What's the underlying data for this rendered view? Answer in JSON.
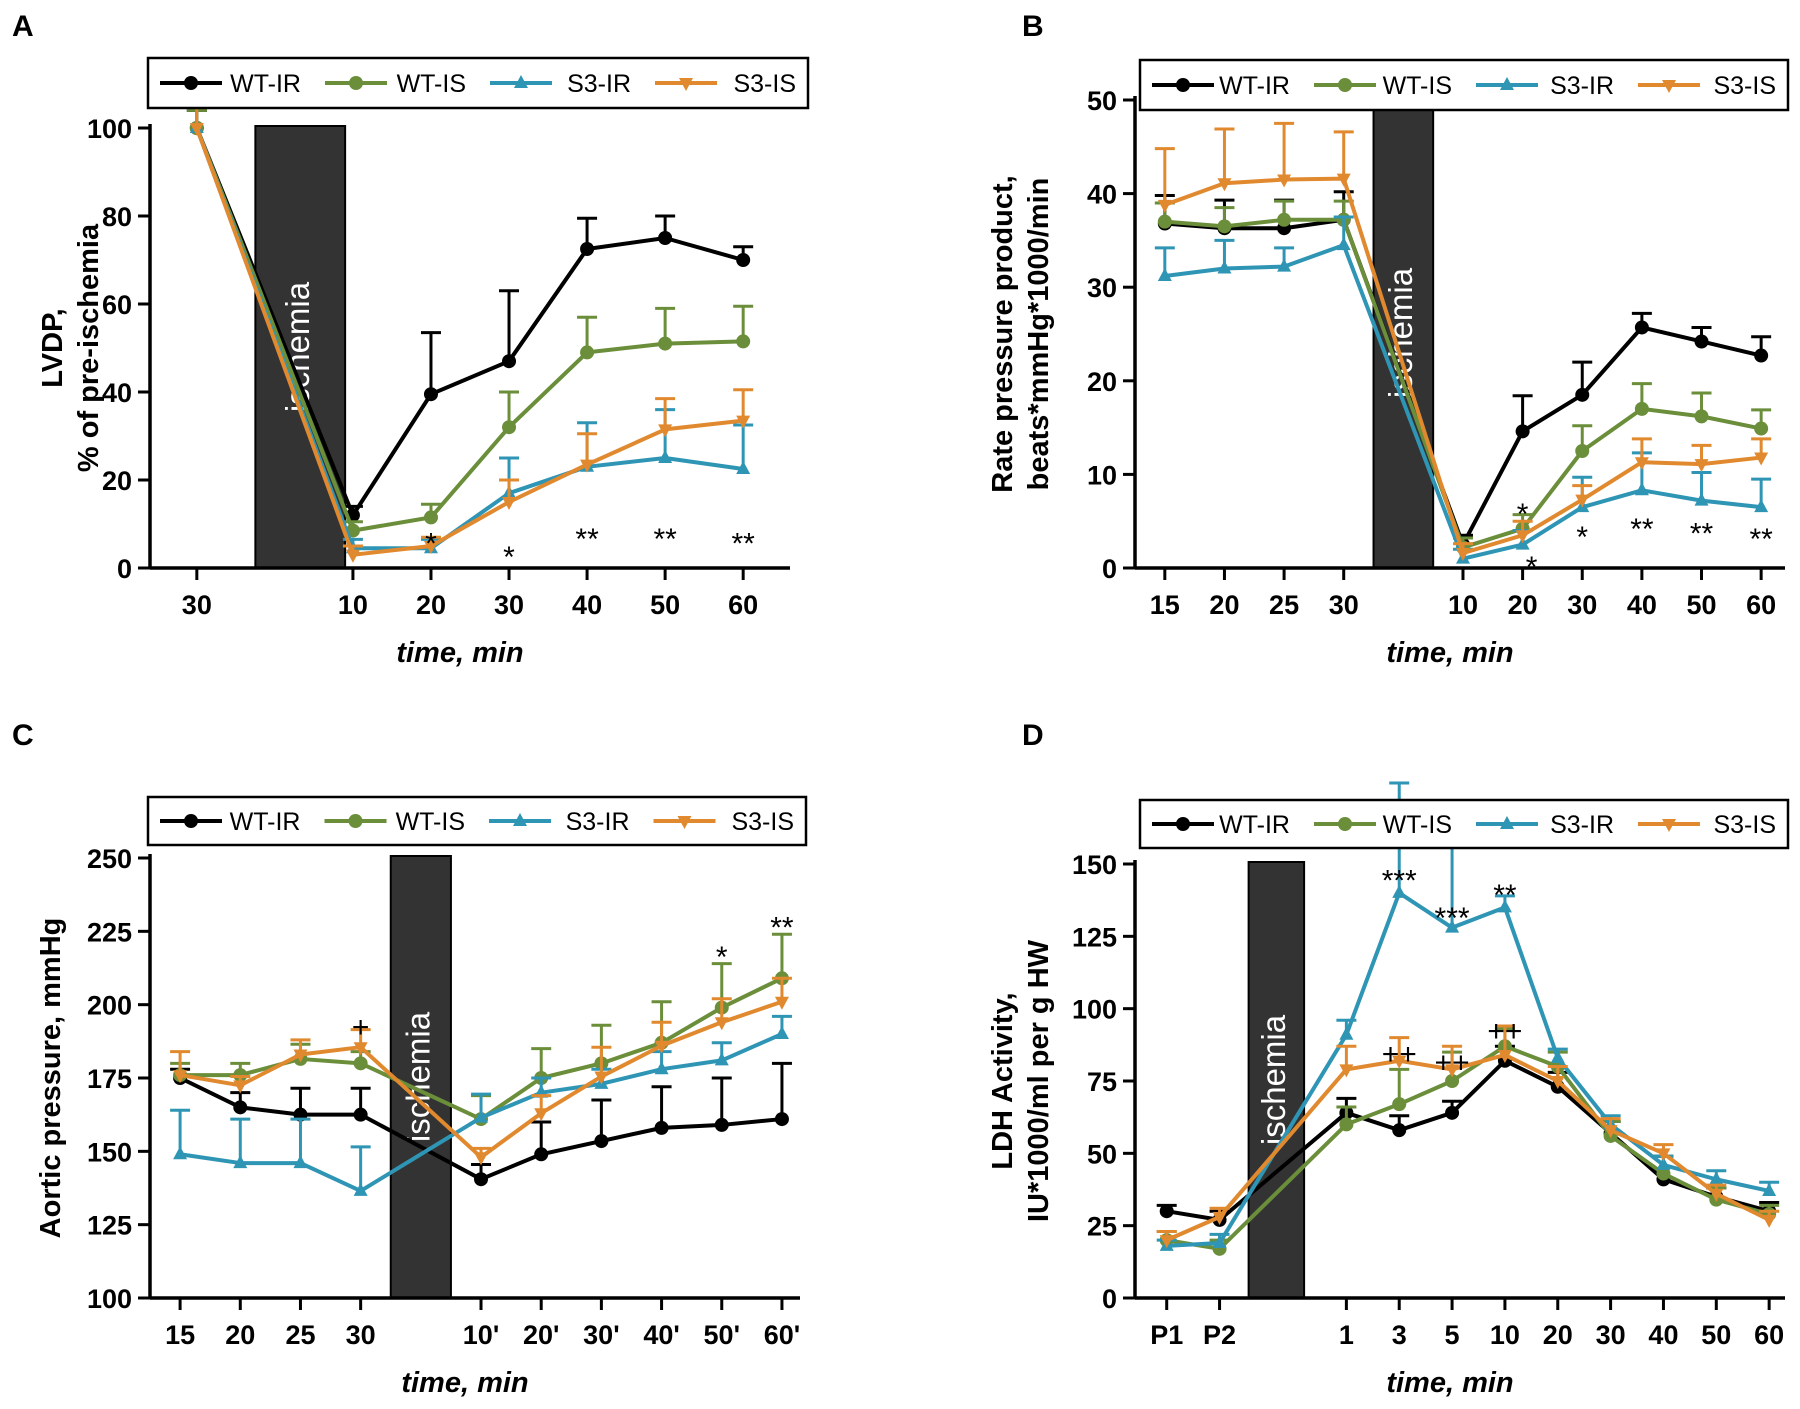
{
  "chart_data": [
    {
      "id": "A",
      "type": "line",
      "panel_label": "A",
      "xlabel": "time, min",
      "ylabel_lines": [
        "LVDP,",
        "% of pre-ischemia"
      ],
      "ylim": [
        0,
        100
      ],
      "yticks": [
        0,
        20,
        40,
        60,
        80,
        100
      ],
      "grid": false,
      "ischemia": {
        "label": "ischemia",
        "from": 0.75,
        "to": 1.9,
        "ymax": 100
      },
      "categories": [
        "30",
        "10",
        "20",
        "30",
        "40",
        "50",
        "60"
      ],
      "x": [
        0,
        2,
        3,
        4,
        5,
        6,
        7
      ],
      "series": [
        {
          "name": "WT-IR",
          "color": "#000000",
          "marker": "circle",
          "values": [
            100,
            12,
            39.5,
            47,
            72.5,
            75,
            70
          ],
          "errors": [
            4,
            2,
            14,
            16,
            7,
            5,
            3
          ]
        },
        {
          "name": "WT-IS",
          "color": "#6b8e3a",
          "marker": "circle",
          "values": [
            100,
            8.5,
            11.5,
            32,
            49,
            51,
            51.5
          ],
          "errors": [
            4,
            2,
            3,
            8,
            8,
            8,
            8
          ]
        },
        {
          "name": "S3-IR",
          "color": "#2f95b5",
          "marker": "triangle-up",
          "values": [
            100,
            4.5,
            4.5,
            17,
            23,
            25,
            22.5
          ],
          "errors": [
            6,
            2,
            2,
            8,
            10,
            11,
            10
          ]
        },
        {
          "name": "S3-IS",
          "color": "#e0892e",
          "marker": "triangle-down",
          "values": [
            100,
            3,
            5,
            15,
            23.5,
            31.5,
            33.5
          ],
          "errors": [
            12,
            2,
            2,
            5,
            7,
            7,
            7
          ]
        }
      ],
      "annotations": [
        {
          "text": "*",
          "x": 3,
          "y": 6
        },
        {
          "text": "*",
          "x": 4,
          "y": 3
        },
        {
          "text": "**",
          "x": 5,
          "y": 7
        },
        {
          "text": "**",
          "x": 6,
          "y": 7
        },
        {
          "text": "**",
          "x": 7,
          "y": 6
        }
      ]
    },
    {
      "id": "B",
      "type": "line",
      "panel_label": "B",
      "xlabel": "time, min",
      "ylabel_lines": [
        "Rate pressure product,",
        "beats*mmHg*1000/min"
      ],
      "ylim": [
        0,
        50
      ],
      "yticks": [
        0,
        10,
        20,
        30,
        40,
        50
      ],
      "grid": false,
      "ischemia": {
        "label": "ischemia",
        "from": 3.5,
        "to": 4.5,
        "ymax": 50
      },
      "categories": [
        "15",
        "20",
        "25",
        "30",
        "10",
        "20",
        "30",
        "40",
        "50",
        "60"
      ],
      "x": [
        0,
        1,
        2,
        3,
        5,
        6,
        7,
        8,
        9,
        10
      ],
      "series": [
        {
          "name": "WT-IR",
          "color": "#000000",
          "marker": "circle",
          "values": [
            36.8,
            36.3,
            36.3,
            37.2,
            2.5,
            14.6,
            18.5,
            25.7,
            24.2,
            22.7
          ],
          "errors": [
            3,
            3,
            3,
            3,
            1,
            3.8,
            3.5,
            1.5,
            1.5,
            2
          ]
        },
        {
          "name": "WT-IS",
          "color": "#6b8e3a",
          "marker": "circle",
          "values": [
            37,
            36.5,
            37.2,
            37.2,
            2.2,
            4.2,
            12.5,
            17,
            16.2,
            14.9
          ],
          "errors": [
            2,
            2,
            2,
            2,
            1,
            1.5,
            2.7,
            2.7,
            2.5,
            2
          ]
        },
        {
          "name": "S3-IR",
          "color": "#2f95b5",
          "marker": "triangle-up",
          "values": [
            31.2,
            32,
            32.2,
            34.5,
            1,
            2.5,
            6.5,
            8.3,
            7.2,
            6.5
          ],
          "errors": [
            3,
            3,
            2,
            3,
            1,
            1.5,
            3.2,
            4,
            3,
            3
          ]
        },
        {
          "name": "S3-IS",
          "color": "#e0892e",
          "marker": "triangle-down",
          "values": [
            38.8,
            41.1,
            41.5,
            41.6,
            1.6,
            3.5,
            7.3,
            11.3,
            11.1,
            11.8
          ],
          "errors": [
            6,
            5.8,
            6,
            5,
            1,
            1.5,
            1.5,
            2.5,
            2,
            2
          ]
        }
      ],
      "annotations": [
        {
          "text": "*",
          "x": 6,
          "y": 6
        },
        {
          "text": "*",
          "x": 6.15,
          "y": 0.3
        },
        {
          "text": "*",
          "x": 7,
          "y": 3.5
        },
        {
          "text": "**",
          "x": 8,
          "y": 4.4
        },
        {
          "text": "**",
          "x": 9,
          "y": 3.9
        },
        {
          "text": "**",
          "x": 10,
          "y": 3.3
        }
      ]
    },
    {
      "id": "C",
      "type": "line",
      "panel_label": "C",
      "xlabel": "time, min",
      "ylabel_lines": [
        "Aortic pressure, mmHg"
      ],
      "ylim": [
        100,
        250
      ],
      "yticks": [
        100,
        125,
        150,
        175,
        200,
        225,
        250
      ],
      "grid": false,
      "ischemia": {
        "label": "ischemia",
        "from": 3.5,
        "to": 4.5,
        "ymax": 250
      },
      "categories": [
        "15",
        "20",
        "25",
        "30",
        "10'",
        "20'",
        "30'",
        "40'",
        "50'",
        "60'"
      ],
      "x": [
        0,
        1,
        2,
        3,
        5,
        6,
        7,
        8,
        9,
        10
      ],
      "series": [
        {
          "name": "WT-IR",
          "color": "#000000",
          "marker": "circle",
          "values": [
            175,
            165,
            162.5,
            162.5,
            140.5,
            149,
            153.5,
            158,
            159,
            161
          ],
          "errors": [
            3,
            5,
            9,
            9,
            5,
            11,
            14,
            14,
            16,
            19
          ]
        },
        {
          "name": "WT-IS",
          "color": "#6b8e3a",
          "marker": "circle",
          "values": [
            176,
            176,
            181.5,
            180,
            161,
            175,
            180,
            187,
            199,
            209
          ],
          "errors": [
            4,
            4,
            5,
            4,
            8,
            10,
            13,
            14,
            15,
            15
          ]
        },
        {
          "name": "S3-IR",
          "color": "#2f95b5",
          "marker": "triangle-up",
          "values": [
            149,
            146,
            146,
            136.5,
            161.5,
            170,
            173,
            178,
            181,
            190
          ],
          "errors": [
            15,
            15,
            15,
            15,
            8,
            5,
            5,
            6,
            6,
            6
          ]
        },
        {
          "name": "S3-IS",
          "color": "#e0892e",
          "marker": "triangle-down",
          "values": [
            176,
            172.5,
            183,
            185.5,
            148,
            163,
            175.5,
            186,
            194,
            201
          ],
          "errors": [
            8,
            3,
            5,
            6,
            3,
            6,
            10,
            8,
            8,
            8
          ]
        }
      ],
      "annotations": [
        {
          "text": "+",
          "x": 3,
          "y": 193
        },
        {
          "text": "*",
          "x": 9,
          "y": 217
        },
        {
          "text": "**",
          "x": 10,
          "y": 227
        }
      ]
    },
    {
      "id": "D",
      "type": "line",
      "panel_label": "D",
      "xlabel": "time, min",
      "ylabel_lines": [
        "LDH Activity,",
        "IU*1000/ml per g HW"
      ],
      "ylim": [
        0,
        150
      ],
      "yticks": [
        0,
        25,
        50,
        75,
        100,
        125,
        150
      ],
      "grid": false,
      "ischemia": {
        "label": "ischemia",
        "from": 1.55,
        "to": 2.6,
        "ymax": 150
      },
      "categories": [
        "P1",
        "P2",
        "1",
        "3",
        "5",
        "10",
        "20",
        "30",
        "40",
        "50",
        "60"
      ],
      "x": [
        0,
        1,
        3.4,
        4.4,
        5.4,
        6.4,
        7.4,
        8.4,
        9.4,
        10.4,
        11.4
      ],
      "series": [
        {
          "name": "WT-IR",
          "color": "#000000",
          "marker": "circle",
          "values": [
            30,
            27,
            64,
            58,
            64,
            82,
            73,
            57,
            41,
            35,
            30
          ],
          "errors": [
            2,
            3,
            5,
            5,
            4,
            5,
            5,
            4,
            8,
            3,
            3
          ]
        },
        {
          "name": "WT-IS",
          "color": "#6b8e3a",
          "marker": "circle",
          "values": [
            20,
            17,
            60,
            67,
            75,
            87,
            80,
            56,
            43,
            34,
            29
          ],
          "errors": [
            3,
            3,
            6,
            12,
            10,
            6,
            5,
            5,
            6,
            4,
            3
          ]
        },
        {
          "name": "S3-IR",
          "color": "#2f95b5",
          "marker": "triangle-up",
          "values": [
            18,
            19,
            91,
            140,
            128,
            135,
            83,
            60,
            46,
            41,
            37
          ],
          "errors": [
            2,
            3,
            5,
            38,
            29,
            4,
            3,
            3,
            3,
            3,
            3
          ]
        },
        {
          "name": "S3-IS",
          "color": "#e0892e",
          "marker": "triangle-down",
          "values": [
            20,
            28,
            79,
            82,
            79,
            84,
            75,
            58,
            50,
            36,
            27
          ],
          "errors": [
            3,
            3,
            8,
            8,
            8,
            10,
            5,
            4,
            3,
            3,
            3
          ]
        }
      ],
      "annotations": [
        {
          "text": "***",
          "x": 4.4,
          "y": 145
        },
        {
          "text": "***",
          "x": 5.4,
          "y": 132
        },
        {
          "text": "**",
          "x": 6.4,
          "y": 140
        },
        {
          "text": "++",
          "x": 4.4,
          "y": 85
        },
        {
          "text": "++",
          "x": 5.4,
          "y": 82
        },
        {
          "text": "++",
          "x": 6.4,
          "y": 93
        }
      ]
    }
  ]
}
